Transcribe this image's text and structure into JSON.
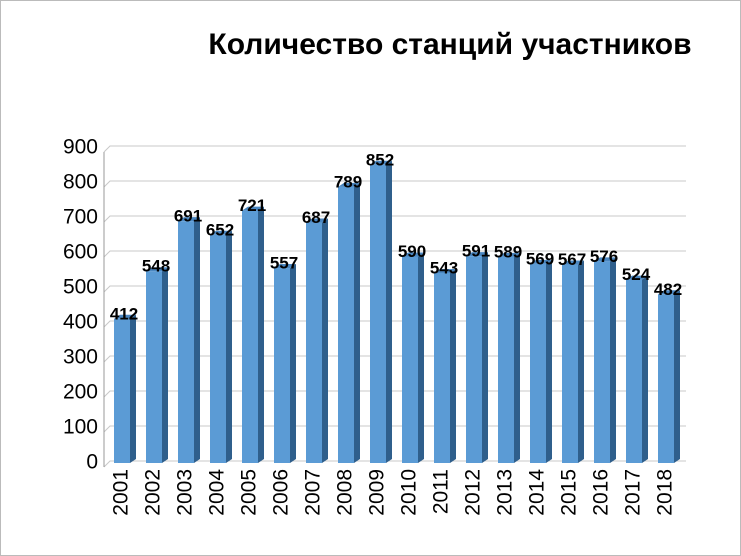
{
  "chart_data": {
    "type": "bar",
    "title": "Количество станций участников",
    "categories": [
      "2001",
      "2002",
      "2003",
      "2004",
      "2005",
      "2006",
      "2007",
      "2008",
      "2009",
      "2010",
      "2011",
      "2012",
      "2013",
      "2014",
      "2015",
      "2016",
      "2017",
      "2018"
    ],
    "values": [
      412,
      548,
      691,
      652,
      721,
      557,
      687,
      789,
      852,
      590,
      543,
      591,
      589,
      569,
      567,
      576,
      524,
      482
    ],
    "color": "#5b9bd5",
    "ylim": [
      0,
      900
    ],
    "yticks": [
      0,
      100,
      200,
      300,
      400,
      500,
      600,
      700,
      800,
      900
    ],
    "grid": true
  }
}
